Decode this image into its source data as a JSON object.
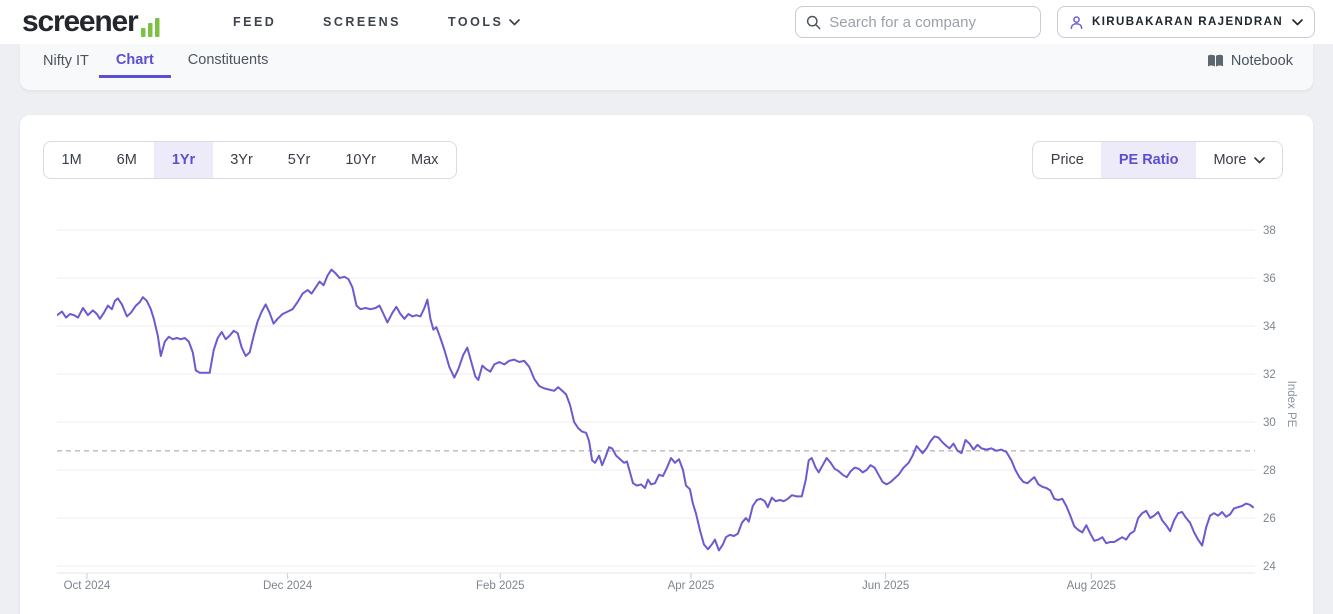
{
  "header": {
    "logo_text": "screener",
    "nav": [
      "FEED",
      "SCREENS",
      "TOOLS"
    ],
    "search_placeholder": "Search for a company",
    "user_name": "KIRUBAKARAN RAJENDRAN"
  },
  "subnav": {
    "title": "Nifty IT",
    "tabs": [
      {
        "label": "Chart",
        "active": true
      },
      {
        "label": "Constituents",
        "active": false
      }
    ],
    "notebook_label": "Notebook"
  },
  "toolbar": {
    "ranges": [
      "1M",
      "6M",
      "1Yr",
      "3Yr",
      "5Yr",
      "10Yr",
      "Max"
    ],
    "active_range": "1Yr",
    "metrics": [
      "Price",
      "PE Ratio",
      "More"
    ],
    "active_metric": "PE Ratio"
  },
  "colors": {
    "accent_purple": "#5b4ed1",
    "accent_purple_bg": "#edebfa",
    "line_purple": "#6a5bd1",
    "logo_green": "#7cc142",
    "grid": "#efeff3",
    "axis": "#e3e5e9",
    "dashed_median": "#b7b9c0",
    "tick_label": "#7d858f"
  },
  "chart_data": {
    "type": "line",
    "title": "Nifty IT Index PE, 1 year",
    "ylabel": "Index PE",
    "series_name": "PE Ratio",
    "y_ticks": [
      38,
      36,
      34,
      32,
      30,
      28,
      26,
      24
    ],
    "ylim": [
      23.6,
      38.9
    ],
    "x_unit_months": 12,
    "x_ticks": [
      {
        "label": "Oct 2024",
        "t": 0.3
      },
      {
        "label": "Dec 2024",
        "t": 2.31
      },
      {
        "label": "Feb 2025",
        "t": 4.44
      },
      {
        "label": "Apr 2025",
        "t": 6.35
      },
      {
        "label": "Jun 2025",
        "t": 8.3
      },
      {
        "label": "Aug 2025",
        "t": 10.36
      }
    ],
    "median_pe_dashed_line": 28.8,
    "grid": true,
    "legend": "none",
    "points": [
      [
        0.0,
        34.45
      ],
      [
        0.05,
        34.6
      ],
      [
        0.09,
        34.35
      ],
      [
        0.13,
        34.5
      ],
      [
        0.17,
        34.45
      ],
      [
        0.21,
        34.35
      ],
      [
        0.26,
        34.75
      ],
      [
        0.31,
        34.45
      ],
      [
        0.36,
        34.65
      ],
      [
        0.4,
        34.5
      ],
      [
        0.43,
        34.3
      ],
      [
        0.47,
        34.55
      ],
      [
        0.51,
        34.85
      ],
      [
        0.55,
        34.7
      ],
      [
        0.58,
        35.05
      ],
      [
        0.61,
        35.15
      ],
      [
        0.65,
        34.9
      ],
      [
        0.7,
        34.4
      ],
      [
        0.74,
        34.55
      ],
      [
        0.79,
        34.85
      ],
      [
        0.83,
        35.0
      ],
      [
        0.86,
        35.2
      ],
      [
        0.9,
        35.05
      ],
      [
        0.94,
        34.7
      ],
      [
        0.97,
        34.3
      ],
      [
        1.01,
        33.6
      ],
      [
        1.04,
        32.75
      ],
      [
        1.08,
        33.35
      ],
      [
        1.12,
        33.55
      ],
      [
        1.16,
        33.45
      ],
      [
        1.2,
        33.5
      ],
      [
        1.24,
        33.45
      ],
      [
        1.28,
        33.5
      ],
      [
        1.32,
        33.35
      ],
      [
        1.36,
        32.9
      ],
      [
        1.39,
        32.15
      ],
      [
        1.43,
        32.05
      ],
      [
        1.48,
        32.05
      ],
      [
        1.53,
        32.05
      ],
      [
        1.57,
        33.0
      ],
      [
        1.61,
        33.5
      ],
      [
        1.65,
        33.75
      ],
      [
        1.69,
        33.45
      ],
      [
        1.73,
        33.6
      ],
      [
        1.77,
        33.8
      ],
      [
        1.81,
        33.7
      ],
      [
        1.85,
        33.1
      ],
      [
        1.89,
        32.75
      ],
      [
        1.93,
        32.9
      ],
      [
        1.97,
        33.6
      ],
      [
        2.01,
        34.2
      ],
      [
        2.05,
        34.6
      ],
      [
        2.09,
        34.9
      ],
      [
        2.13,
        34.55
      ],
      [
        2.17,
        34.1
      ],
      [
        2.21,
        34.3
      ],
      [
        2.26,
        34.5
      ],
      [
        2.31,
        34.6
      ],
      [
        2.36,
        34.7
      ],
      [
        2.41,
        35.0
      ],
      [
        2.46,
        35.35
      ],
      [
        2.51,
        35.5
      ],
      [
        2.55,
        35.35
      ],
      [
        2.59,
        35.6
      ],
      [
        2.63,
        35.85
      ],
      [
        2.67,
        35.7
      ],
      [
        2.71,
        36.1
      ],
      [
        2.75,
        36.35
      ],
      [
        2.79,
        36.2
      ],
      [
        2.83,
        36.0
      ],
      [
        2.88,
        36.05
      ],
      [
        2.92,
        35.95
      ],
      [
        2.96,
        35.6
      ],
      [
        3.0,
        34.85
      ],
      [
        3.04,
        34.7
      ],
      [
        3.09,
        34.75
      ],
      [
        3.14,
        34.7
      ],
      [
        3.19,
        34.75
      ],
      [
        3.23,
        34.85
      ],
      [
        3.27,
        34.5
      ],
      [
        3.31,
        34.15
      ],
      [
        3.36,
        34.55
      ],
      [
        3.4,
        34.8
      ],
      [
        3.44,
        34.5
      ],
      [
        3.48,
        34.3
      ],
      [
        3.52,
        34.5
      ],
      [
        3.56,
        34.4
      ],
      [
        3.6,
        34.45
      ],
      [
        3.64,
        34.4
      ],
      [
        3.68,
        34.75
      ],
      [
        3.71,
        35.1
      ],
      [
        3.74,
        34.3
      ],
      [
        3.77,
        33.85
      ],
      [
        3.8,
        33.95
      ],
      [
        3.84,
        33.5
      ],
      [
        3.88,
        33.0
      ],
      [
        3.93,
        32.3
      ],
      [
        3.98,
        31.85
      ],
      [
        4.02,
        32.2
      ],
      [
        4.07,
        32.8
      ],
      [
        4.11,
        33.1
      ],
      [
        4.15,
        32.5
      ],
      [
        4.19,
        31.9
      ],
      [
        4.22,
        31.75
      ],
      [
        4.26,
        32.35
      ],
      [
        4.3,
        32.2
      ],
      [
        4.34,
        32.1
      ],
      [
        4.38,
        32.4
      ],
      [
        4.43,
        32.5
      ],
      [
        4.48,
        32.4
      ],
      [
        4.53,
        32.55
      ],
      [
        4.58,
        32.6
      ],
      [
        4.63,
        32.5
      ],
      [
        4.68,
        32.55
      ],
      [
        4.73,
        32.3
      ],
      [
        4.78,
        31.8
      ],
      [
        4.83,
        31.5
      ],
      [
        4.88,
        31.4
      ],
      [
        4.93,
        31.35
      ],
      [
        4.98,
        31.3
      ],
      [
        5.02,
        31.45
      ],
      [
        5.06,
        31.3
      ],
      [
        5.1,
        31.15
      ],
      [
        5.14,
        30.7
      ],
      [
        5.18,
        30.0
      ],
      [
        5.22,
        29.75
      ],
      [
        5.26,
        29.6
      ],
      [
        5.3,
        29.55
      ],
      [
        5.33,
        29.2
      ],
      [
        5.36,
        28.4
      ],
      [
        5.39,
        28.3
      ],
      [
        5.43,
        28.6
      ],
      [
        5.46,
        28.2
      ],
      [
        5.49,
        28.5
      ],
      [
        5.53,
        28.95
      ],
      [
        5.56,
        28.9
      ],
      [
        5.6,
        28.6
      ],
      [
        5.64,
        28.45
      ],
      [
        5.68,
        28.3
      ],
      [
        5.71,
        28.35
      ],
      [
        5.74,
        27.9
      ],
      [
        5.77,
        27.45
      ],
      [
        5.81,
        27.35
      ],
      [
        5.85,
        27.4
      ],
      [
        5.89,
        27.25
      ],
      [
        5.92,
        27.6
      ],
      [
        5.95,
        27.4
      ],
      [
        5.99,
        27.45
      ],
      [
        6.03,
        27.8
      ],
      [
        6.07,
        27.75
      ],
      [
        6.11,
        28.1
      ],
      [
        6.15,
        28.5
      ],
      [
        6.19,
        28.3
      ],
      [
        6.23,
        28.45
      ],
      [
        6.27,
        28.0
      ],
      [
        6.3,
        27.35
      ],
      [
        6.34,
        27.2
      ],
      [
        6.37,
        26.6
      ],
      [
        6.4,
        26.2
      ],
      [
        6.44,
        25.5
      ],
      [
        6.48,
        24.9
      ],
      [
        6.52,
        24.7
      ],
      [
        6.56,
        24.9
      ],
      [
        6.59,
        25.1
      ],
      [
        6.63,
        24.65
      ],
      [
        6.67,
        24.9
      ],
      [
        6.7,
        25.2
      ],
      [
        6.74,
        25.3
      ],
      [
        6.78,
        25.25
      ],
      [
        6.82,
        25.35
      ],
      [
        6.86,
        25.8
      ],
      [
        6.9,
        26.0
      ],
      [
        6.93,
        25.85
      ],
      [
        6.97,
        26.5
      ],
      [
        7.01,
        26.75
      ],
      [
        7.05,
        26.8
      ],
      [
        7.09,
        26.7
      ],
      [
        7.12,
        26.45
      ],
      [
        7.16,
        26.85
      ],
      [
        7.2,
        26.7
      ],
      [
        7.24,
        26.75
      ],
      [
        7.28,
        26.7
      ],
      [
        7.32,
        26.8
      ],
      [
        7.36,
        26.95
      ],
      [
        7.41,
        26.9
      ],
      [
        7.46,
        26.9
      ],
      [
        7.5,
        27.6
      ],
      [
        7.53,
        28.4
      ],
      [
        7.56,
        28.5
      ],
      [
        7.6,
        28.1
      ],
      [
        7.63,
        27.9
      ],
      [
        7.67,
        28.2
      ],
      [
        7.71,
        28.5
      ],
      [
        7.75,
        28.3
      ],
      [
        7.79,
        28.05
      ],
      [
        7.83,
        27.95
      ],
      [
        7.87,
        27.8
      ],
      [
        7.91,
        27.7
      ],
      [
        7.95,
        27.95
      ],
      [
        7.99,
        28.1
      ],
      [
        8.03,
        28.05
      ],
      [
        8.07,
        27.9
      ],
      [
        8.11,
        28.0
      ],
      [
        8.15,
        28.2
      ],
      [
        8.19,
        28.1
      ],
      [
        8.23,
        27.8
      ],
      [
        8.27,
        27.5
      ],
      [
        8.31,
        27.4
      ],
      [
        8.35,
        27.5
      ],
      [
        8.39,
        27.65
      ],
      [
        8.43,
        27.8
      ],
      [
        8.48,
        28.1
      ],
      [
        8.53,
        28.3
      ],
      [
        8.57,
        28.6
      ],
      [
        8.61,
        29.0
      ],
      [
        8.64,
        28.85
      ],
      [
        8.67,
        28.7
      ],
      [
        8.71,
        28.9
      ],
      [
        8.75,
        29.2
      ],
      [
        8.79,
        29.4
      ],
      [
        8.83,
        29.35
      ],
      [
        8.87,
        29.15
      ],
      [
        8.91,
        29.0
      ],
      [
        8.94,
        28.9
      ],
      [
        8.98,
        29.1
      ],
      [
        9.02,
        28.8
      ],
      [
        9.06,
        28.7
      ],
      [
        9.1,
        29.25
      ],
      [
        9.14,
        29.1
      ],
      [
        9.18,
        28.85
      ],
      [
        9.22,
        29.05
      ],
      [
        9.26,
        28.9
      ],
      [
        9.31,
        28.85
      ],
      [
        9.36,
        28.9
      ],
      [
        9.41,
        28.8
      ],
      [
        9.46,
        28.85
      ],
      [
        9.51,
        28.75
      ],
      [
        9.56,
        28.4
      ],
      [
        9.6,
        28.0
      ],
      [
        9.64,
        27.7
      ],
      [
        9.68,
        27.5
      ],
      [
        9.72,
        27.45
      ],
      [
        9.76,
        27.6
      ],
      [
        9.79,
        27.7
      ],
      [
        9.83,
        27.4
      ],
      [
        9.87,
        27.3
      ],
      [
        9.91,
        27.25
      ],
      [
        9.95,
        27.15
      ],
      [
        9.99,
        26.8
      ],
      [
        10.03,
        26.75
      ],
      [
        10.07,
        26.8
      ],
      [
        10.11,
        26.5
      ],
      [
        10.15,
        26.1
      ],
      [
        10.19,
        25.65
      ],
      [
        10.23,
        25.5
      ],
      [
        10.27,
        25.4
      ],
      [
        10.31,
        25.7
      ],
      [
        10.35,
        25.35
      ],
      [
        10.39,
        25.05
      ],
      [
        10.43,
        25.1
      ],
      [
        10.47,
        25.2
      ],
      [
        10.51,
        24.95
      ],
      [
        10.55,
        25.0
      ],
      [
        10.59,
        25.0
      ],
      [
        10.63,
        25.1
      ],
      [
        10.67,
        25.2
      ],
      [
        10.71,
        25.1
      ],
      [
        10.75,
        25.35
      ],
      [
        10.79,
        25.45
      ],
      [
        10.83,
        26.0
      ],
      [
        10.87,
        26.2
      ],
      [
        10.91,
        26.3
      ],
      [
        10.95,
        26.0
      ],
      [
        10.99,
        26.1
      ],
      [
        11.03,
        26.25
      ],
      [
        11.07,
        25.9
      ],
      [
        11.11,
        25.7
      ],
      [
        11.15,
        25.45
      ],
      [
        11.19,
        25.9
      ],
      [
        11.23,
        26.2
      ],
      [
        11.27,
        26.25
      ],
      [
        11.31,
        26.0
      ],
      [
        11.35,
        25.8
      ],
      [
        11.39,
        25.4
      ],
      [
        11.43,
        25.1
      ],
      [
        11.47,
        24.85
      ],
      [
        11.51,
        25.6
      ],
      [
        11.55,
        26.1
      ],
      [
        11.59,
        26.2
      ],
      [
        11.63,
        26.1
      ],
      [
        11.67,
        26.25
      ],
      [
        11.71,
        26.05
      ],
      [
        11.75,
        26.15
      ],
      [
        11.79,
        26.4
      ],
      [
        11.83,
        26.45
      ],
      [
        11.87,
        26.5
      ],
      [
        11.91,
        26.6
      ],
      [
        11.95,
        26.55
      ],
      [
        11.98,
        26.45
      ]
    ]
  }
}
